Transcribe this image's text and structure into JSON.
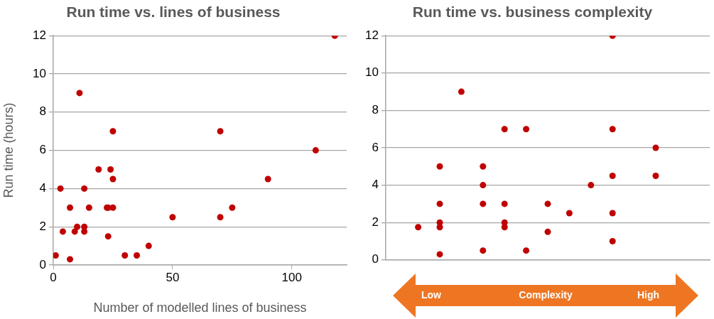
{
  "chart_data": [
    {
      "type": "scatter",
      "title": "Run time vs. lines of business",
      "xlabel": "Number of modelled lines of business",
      "ylabel": "Run time (hours)",
      "x": [
        1,
        3,
        4,
        7,
        7,
        9,
        10,
        11,
        13,
        13,
        13,
        15,
        19,
        22.5,
        23,
        23,
        24,
        25,
        25,
        25,
        30,
        35,
        40,
        50,
        70,
        70,
        75,
        90,
        110,
        118
      ],
      "values": [
        0.5,
        4,
        1.75,
        3,
        0.3,
        1.75,
        2,
        9,
        4,
        2,
        1.75,
        3,
        5,
        3,
        3,
        1.5,
        5,
        7,
        4.5,
        3,
        0.5,
        0.5,
        1,
        2.5,
        7,
        2.5,
        3,
        4.5,
        6,
        12
      ],
      "color": "#c00000",
      "xlim": [
        0,
        123
      ],
      "ylim": [
        0,
        12
      ],
      "xticks": [
        0,
        50,
        100
      ],
      "yticks": [
        0,
        2,
        4,
        6,
        8,
        10,
        12
      ],
      "grid": "y",
      "marker": "circle"
    },
    {
      "type": "scatter",
      "title": "Run time vs. business complexity",
      "xlabel": "Complexity",
      "annotations": [
        "Low",
        "High"
      ],
      "categories": [
        null,
        null,
        null,
        null,
        null,
        null,
        null,
        null,
        null,
        null,
        null,
        null,
        null,
        null,
        null
      ],
      "series": [
        {
          "color": "#c00000",
          "values": [
            null,
            1.75,
            5,
            9,
            5,
            7,
            7,
            3,
            2.5,
            4,
            12,
            null,
            6,
            null,
            null
          ]
        },
        {
          "color": "#c00000",
          "values": [
            null,
            null,
            3,
            null,
            4,
            3,
            0.5,
            1.5,
            null,
            null,
            7,
            null,
            4.5,
            null,
            null
          ]
        },
        {
          "color": "#c00000",
          "values": [
            null,
            null,
            2,
            null,
            3,
            2,
            null,
            null,
            null,
            null,
            4.5,
            null,
            null,
            null,
            null
          ]
        },
        {
          "color": "#c00000",
          "values": [
            null,
            null,
            1.75,
            null,
            0.5,
            1.75,
            null,
            null,
            null,
            null,
            2.5,
            null,
            null,
            null,
            null
          ]
        },
        {
          "color": "#c00000",
          "values": [
            null,
            null,
            0.3,
            null,
            null,
            null,
            null,
            null,
            null,
            null,
            1,
            null,
            null,
            null,
            null
          ]
        }
      ],
      "ylim": [
        0,
        12
      ],
      "yticks": [
        0,
        2,
        4,
        6,
        8,
        10,
        12
      ],
      "grid": "y",
      "marker": "circle"
    }
  ]
}
